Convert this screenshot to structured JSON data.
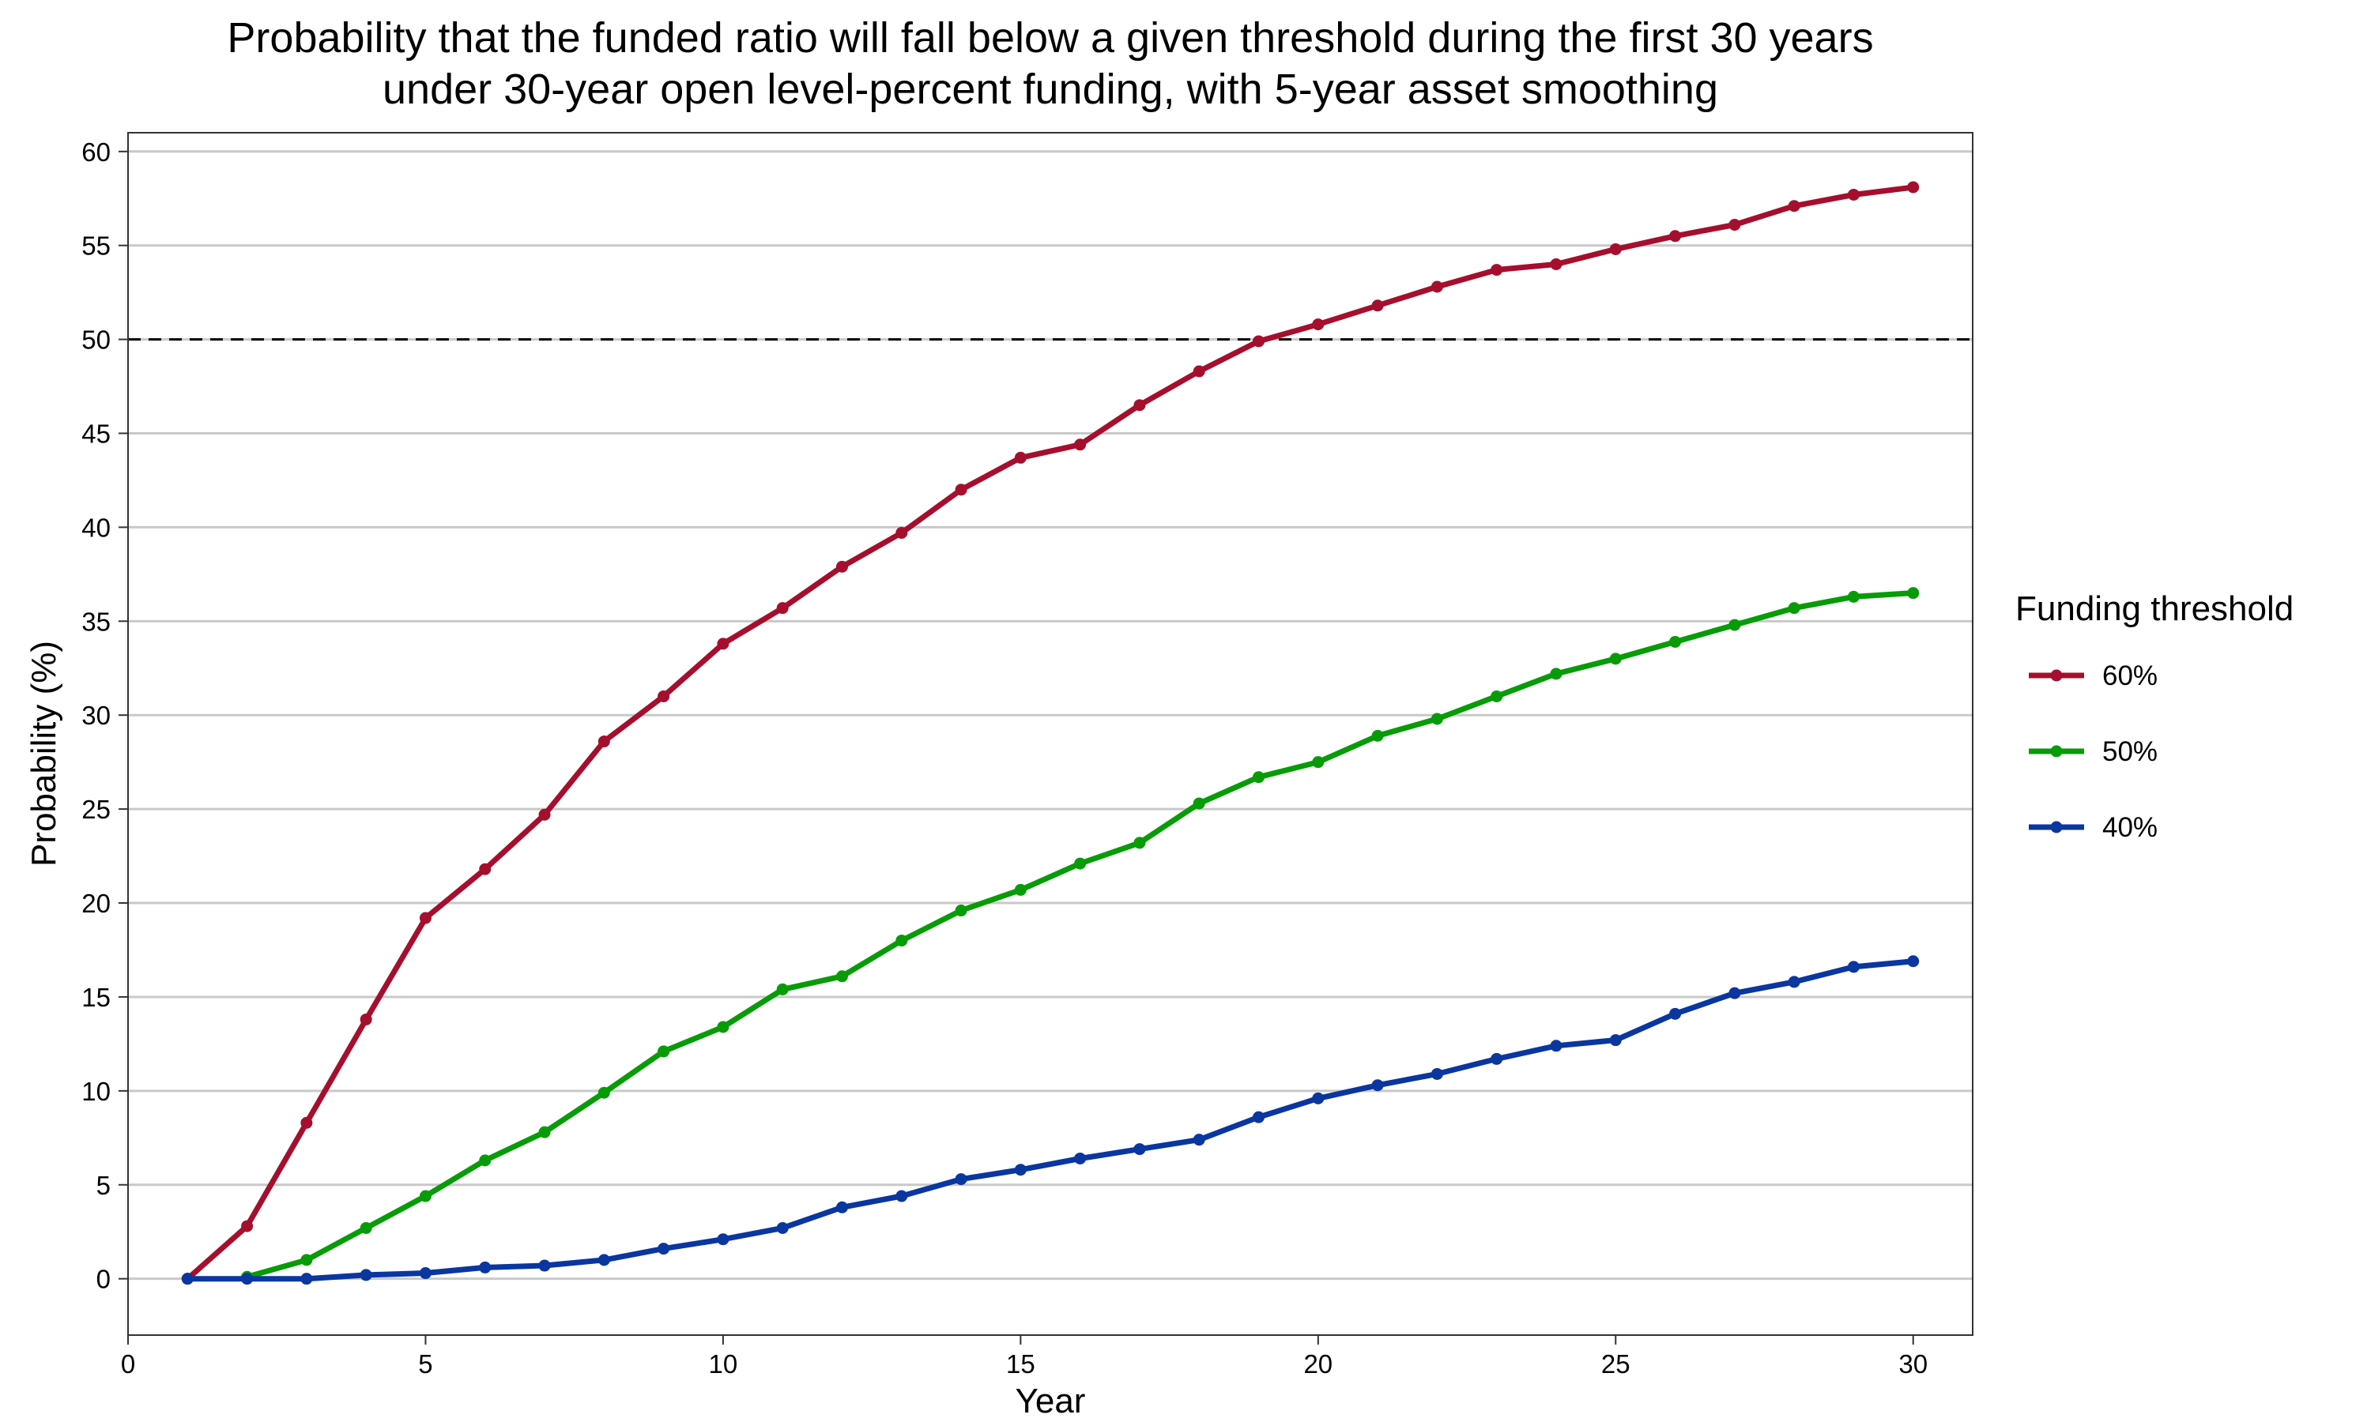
{
  "chart_data": {
    "type": "line",
    "title": [
      "Probability that the funded ratio will fall below a given threshold during the first 30 years",
      "under 30-year open level-percent funding, with 5-year asset smoothing"
    ],
    "xlabel": "Year",
    "ylabel": "Probability (%)",
    "xlim": [
      0,
      31
    ],
    "ylim": [
      -3,
      61
    ],
    "x_ticks": [
      0,
      5,
      10,
      15,
      20,
      25,
      30
    ],
    "y_ticks": [
      0,
      5,
      10,
      15,
      20,
      25,
      30,
      35,
      40,
      45,
      50,
      55,
      60
    ],
    "grid": "horizontal",
    "reference_line": {
      "y": 50,
      "style": "dashed"
    },
    "legend": {
      "title": "Funding threshold",
      "position": "right"
    },
    "series": [
      {
        "name": "60%",
        "color": "#a50f2d",
        "x": [
          1,
          2,
          3,
          4,
          5,
          6,
          7,
          8,
          9,
          10,
          11,
          12,
          13,
          14,
          15,
          16,
          17,
          18,
          19,
          20,
          21,
          22,
          23,
          24,
          25,
          26,
          27,
          28,
          29,
          30
        ],
        "values": [
          0,
          2.8,
          8.3,
          13.8,
          19.2,
          21.8,
          24.7,
          28.6,
          31.0,
          33.8,
          35.7,
          37.9,
          39.7,
          42.0,
          43.7,
          44.4,
          46.5,
          48.3,
          49.9,
          50.8,
          51.8,
          52.8,
          53.7,
          54.0,
          54.8,
          55.5,
          56.1,
          57.1,
          57.7,
          58.1
        ]
      },
      {
        "name": "50%",
        "color": "#079c07",
        "x": [
          2,
          3,
          4,
          5,
          6,
          7,
          8,
          9,
          10,
          11,
          12,
          13,
          14,
          15,
          16,
          17,
          18,
          19,
          20,
          21,
          22,
          23,
          24,
          25,
          26,
          27,
          28,
          29,
          30
        ],
        "values": [
          0.1,
          1.0,
          2.7,
          4.4,
          6.3,
          7.8,
          9.9,
          12.1,
          13.4,
          15.4,
          16.1,
          18.0,
          19.6,
          20.7,
          22.1,
          23.2,
          25.3,
          26.7,
          27.5,
          28.9,
          29.8,
          31.0,
          32.2,
          33.0,
          33.9,
          34.8,
          35.7,
          36.3,
          36.5
        ]
      },
      {
        "name": "40%",
        "color": "#0a36a0",
        "x": [
          1,
          2,
          3,
          4,
          5,
          6,
          7,
          8,
          9,
          10,
          11,
          12,
          13,
          14,
          15,
          16,
          17,
          18,
          19,
          20,
          21,
          22,
          23,
          24,
          25,
          26,
          27,
          28,
          29,
          30
        ],
        "values": [
          0,
          0,
          0,
          0.2,
          0.3,
          0.6,
          0.7,
          1.0,
          1.6,
          2.1,
          2.7,
          3.8,
          4.4,
          5.3,
          5.8,
          6.4,
          6.9,
          7.4,
          8.6,
          9.6,
          10.3,
          10.9,
          11.7,
          12.4,
          12.7,
          14.1,
          15.2,
          15.8,
          16.6,
          16.9
        ]
      }
    ]
  }
}
